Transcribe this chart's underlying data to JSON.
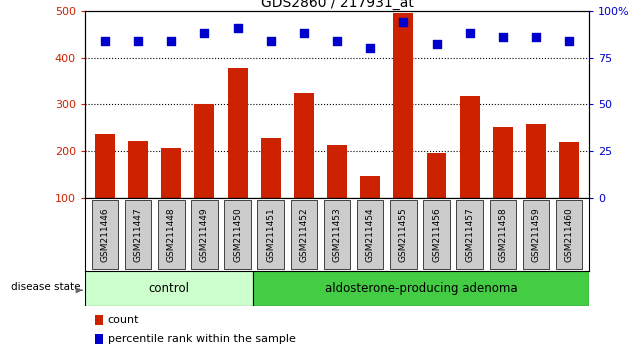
{
  "title": "GDS2860 / 217931_at",
  "samples": [
    "GSM211446",
    "GSM211447",
    "GSM211448",
    "GSM211449",
    "GSM211450",
    "GSM211451",
    "GSM211452",
    "GSM211453",
    "GSM211454",
    "GSM211455",
    "GSM211456",
    "GSM211457",
    "GSM211458",
    "GSM211459",
    "GSM211460"
  ],
  "counts": [
    238,
    222,
    208,
    300,
    378,
    228,
    325,
    213,
    148,
    495,
    197,
    317,
    252,
    258,
    220
  ],
  "percentiles": [
    84,
    84,
    84,
    88,
    91,
    84,
    88,
    84,
    80,
    94,
    82,
    88,
    86,
    86,
    84
  ],
  "control_count": 5,
  "ylim_left": [
    100,
    500
  ],
  "ylim_right": [
    0,
    100
  ],
  "yticks_left": [
    100,
    200,
    300,
    400,
    500
  ],
  "yticks_right": [
    0,
    25,
    50,
    75,
    100
  ],
  "yticklabels_right": [
    "0",
    "25",
    "50",
    "75",
    "100%"
  ],
  "bar_color": "#cc2200",
  "dot_color": "#0000cc",
  "grid_color": "#000000",
  "control_label": "control",
  "adenoma_label": "aldosterone-producing adenoma",
  "disease_label": "disease state",
  "control_bg": "#ccffcc",
  "adenoma_bg": "#44cc44",
  "xlabel_bg": "#cccccc",
  "legend_count_label": "count",
  "legend_pct_label": "percentile rank within the sample",
  "fig_bg": "#ffffff"
}
